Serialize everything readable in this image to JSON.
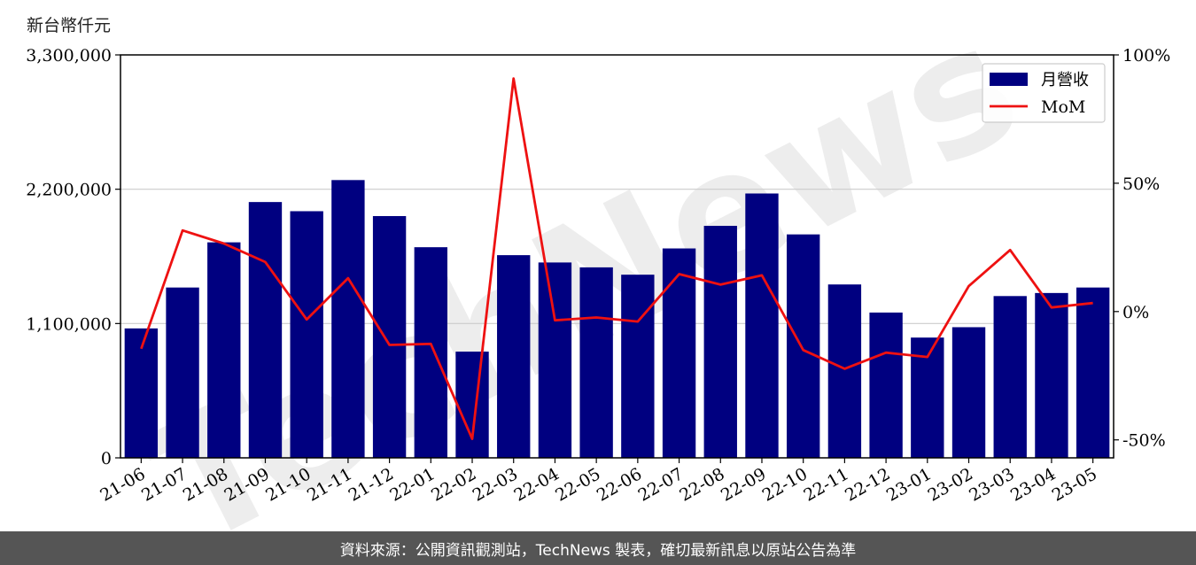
{
  "unit_label": "新台幣仟元",
  "watermark": "TechNews",
  "footer_text": "資料來源：公開資訊觀測站，TechNews 製表，確切最新訊息以原站公告為準",
  "colors": {
    "bar": "#000080",
    "line": "#ee1111",
    "grid": "#cccccc",
    "footer_bg": "#555555"
  },
  "chart_data": {
    "type": "bar",
    "categories": [
      "21-06",
      "21-07",
      "21-08",
      "21-09",
      "21-10",
      "21-11",
      "21-12",
      "22-01",
      "22-02",
      "22-03",
      "22-04",
      "22-05",
      "22-06",
      "22-07",
      "22-08",
      "22-09",
      "22-10",
      "22-11",
      "22-12",
      "23-01",
      "23-02",
      "23-03",
      "23-04",
      "23-05"
    ],
    "series": [
      {
        "name": "月營收",
        "type": "bar",
        "axis": "left",
        "values": [
          1060000,
          1395000,
          1765000,
          2095000,
          2020000,
          2275000,
          1980000,
          1725000,
          870000,
          1660000,
          1600000,
          1560000,
          1500000,
          1715000,
          1900000,
          2165000,
          1830000,
          1420000,
          1190000,
          985000,
          1070000,
          1325000,
          1350000,
          1395000
        ]
      },
      {
        "name": "MoM",
        "type": "line",
        "axis": "right",
        "unit": "%",
        "values": [
          -14.5,
          31.6,
          26.5,
          19.3,
          -3.1,
          13.0,
          -13.0,
          -12.6,
          -49.6,
          90.8,
          -3.4,
          -2.3,
          -3.9,
          14.6,
          10.5,
          14.1,
          -15.0,
          -22.3,
          -16.0,
          -17.7,
          9.9,
          24.0,
          1.6,
          3.3
        ]
      }
    ],
    "y_left": {
      "ylim": [
        0,
        3300000
      ],
      "ticks": [
        0,
        1100000,
        2200000,
        3300000
      ],
      "tick_labels": [
        "0",
        "1,100,000",
        "2,200,000",
        "3,300,000"
      ]
    },
    "y_right": {
      "ylim": [
        -57,
        100
      ],
      "ticks": [
        -50,
        0,
        50,
        100
      ],
      "tick_labels": [
        "-50%",
        "0%",
        "50%",
        "100%"
      ]
    },
    "grid": "horizontal",
    "legend": {
      "position": "top-right",
      "entries": [
        "月營收",
        "MoM"
      ]
    }
  }
}
